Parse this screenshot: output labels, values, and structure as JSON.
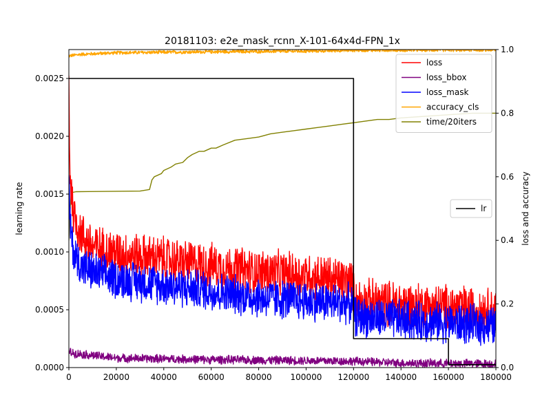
{
  "chart_data": {
    "type": "line",
    "title": "20181103: e2e_mask_rcnn_X-101-64x4d-FPN_1x",
    "x_ticks": [
      "0",
      "20000",
      "40000",
      "60000",
      "80000",
      "100000",
      "120000",
      "140000",
      "160000",
      "180000"
    ],
    "xlim": [
      0,
      180000
    ],
    "left_axis": {
      "label": "learning rate",
      "ylim": [
        0,
        0.00275
      ],
      "ticks": [
        "0.0000",
        "0.0005",
        "0.0010",
        "0.0015",
        "0.0020",
        "0.0025"
      ]
    },
    "right_axis": {
      "label": "loss and accuracy",
      "ylim": [
        0,
        1.0
      ],
      "ticks": [
        "0.0",
        "0.2",
        "0.4",
        "0.6",
        "0.8",
        "1.0"
      ]
    },
    "grid": false,
    "legend_right": {
      "placement": "upper-right",
      "entries": [
        "loss",
        "loss_bbox",
        "loss_mask",
        "accuracy_cls",
        "time/20iters"
      ]
    },
    "legend_left": {
      "placement": "center-right",
      "entries": [
        "lr"
      ]
    },
    "series": [
      {
        "name": "lr",
        "axis": "left",
        "color": "#000000",
        "step": true,
        "x": [
          0,
          120000,
          120000,
          160000,
          160000,
          180000
        ],
        "y": [
          0.0025,
          0.0025,
          0.00025,
          0.00025,
          2.5e-05,
          2.5e-05
        ]
      },
      {
        "name": "loss",
        "axis": "right",
        "color": "#ff0000",
        "noise": 0.08,
        "x": [
          0,
          500,
          2000,
          5000,
          10000,
          20000,
          40000,
          60000,
          80000,
          100000,
          119000,
          121000,
          140000,
          160000,
          180000
        ],
        "y": [
          0.9,
          0.6,
          0.48,
          0.42,
          0.38,
          0.36,
          0.34,
          0.32,
          0.3,
          0.29,
          0.27,
          0.21,
          0.2,
          0.19,
          0.18
        ]
      },
      {
        "name": "loss_bbox",
        "axis": "right",
        "color": "#800080",
        "noise": 0.015,
        "x": [
          0,
          2000,
          20000,
          60000,
          100000,
          120000,
          140000,
          180000
        ],
        "y": [
          0.05,
          0.045,
          0.03,
          0.025,
          0.022,
          0.02,
          0.014,
          0.012
        ]
      },
      {
        "name": "loss_mask",
        "axis": "right",
        "color": "#0000ff",
        "noise": 0.07,
        "x": [
          0,
          500,
          2000,
          5000,
          10000,
          20000,
          40000,
          60000,
          80000,
          100000,
          119000,
          121000,
          140000,
          160000,
          180000
        ],
        "y": [
          0.6,
          0.45,
          0.36,
          0.32,
          0.3,
          0.28,
          0.26,
          0.24,
          0.22,
          0.21,
          0.2,
          0.16,
          0.15,
          0.14,
          0.13
        ]
      },
      {
        "name": "accuracy_cls",
        "axis": "right",
        "color": "#ffa500",
        "noise": 0.006,
        "x": [
          0,
          5000,
          20000,
          60000,
          100000,
          120000,
          180000
        ],
        "y": [
          0.98,
          0.985,
          0.99,
          0.993,
          0.995,
          0.998,
          0.999
        ]
      },
      {
        "name": "time/20iters",
        "axis": "right",
        "color": "#808000",
        "noise": 0,
        "x": [
          0,
          400,
          1000,
          3000,
          30000,
          34000,
          35000,
          36000,
          39000,
          40000,
          43000,
          45000,
          48000,
          50000,
          52000,
          55000,
          57000,
          60000,
          62000,
          65000,
          70000,
          75000,
          80000,
          85000,
          90000,
          95000,
          100000,
          105000,
          110000,
          115000,
          120000,
          125000,
          130000,
          135000,
          140000,
          150000,
          160000,
          170000,
          180000
        ],
        "y": [
          0.4,
          0.48,
          0.55,
          0.553,
          0.555,
          0.56,
          0.59,
          0.6,
          0.61,
          0.62,
          0.63,
          0.64,
          0.645,
          0.66,
          0.67,
          0.68,
          0.68,
          0.69,
          0.69,
          0.7,
          0.715,
          0.72,
          0.725,
          0.735,
          0.74,
          0.745,
          0.75,
          0.755,
          0.76,
          0.765,
          0.77,
          0.775,
          0.78,
          0.78,
          0.785,
          0.79,
          0.795,
          0.8,
          0.8
        ]
      }
    ]
  }
}
